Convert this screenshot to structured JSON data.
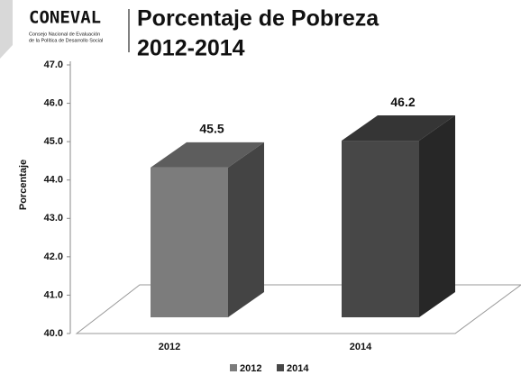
{
  "logo": {
    "name": "CONEVAL",
    "lines": [
      "Consejo Nacional de Evaluación",
      "de la Política de Desarrollo Social"
    ]
  },
  "chart_data": {
    "type": "bar3d",
    "title": [
      "Porcentaje de Pobreza",
      "2012-2014"
    ],
    "ylabel": "Porcentaje",
    "categories": [
      "2012",
      "2014"
    ],
    "series": [
      {
        "name": "2012",
        "color": "#7c7c7c",
        "values": [
          45.5,
          null
        ]
      },
      {
        "name": "2014",
        "color": "#474747",
        "values": [
          null,
          46.2
        ]
      }
    ],
    "ylim": [
      40,
      47
    ],
    "yticks": [
      {
        "value": 40,
        "label": "40.0"
      },
      {
        "value": 41,
        "label": "41.0"
      },
      {
        "value": 42,
        "label": "42.0"
      },
      {
        "value": 43,
        "label": "43.0"
      },
      {
        "value": 44,
        "label": "44.0"
      },
      {
        "value": 45,
        "label": "45.0"
      },
      {
        "value": 46,
        "label": "46.0"
      },
      {
        "value": 47,
        "label": "47.0"
      }
    ],
    "legend": "bottom"
  }
}
